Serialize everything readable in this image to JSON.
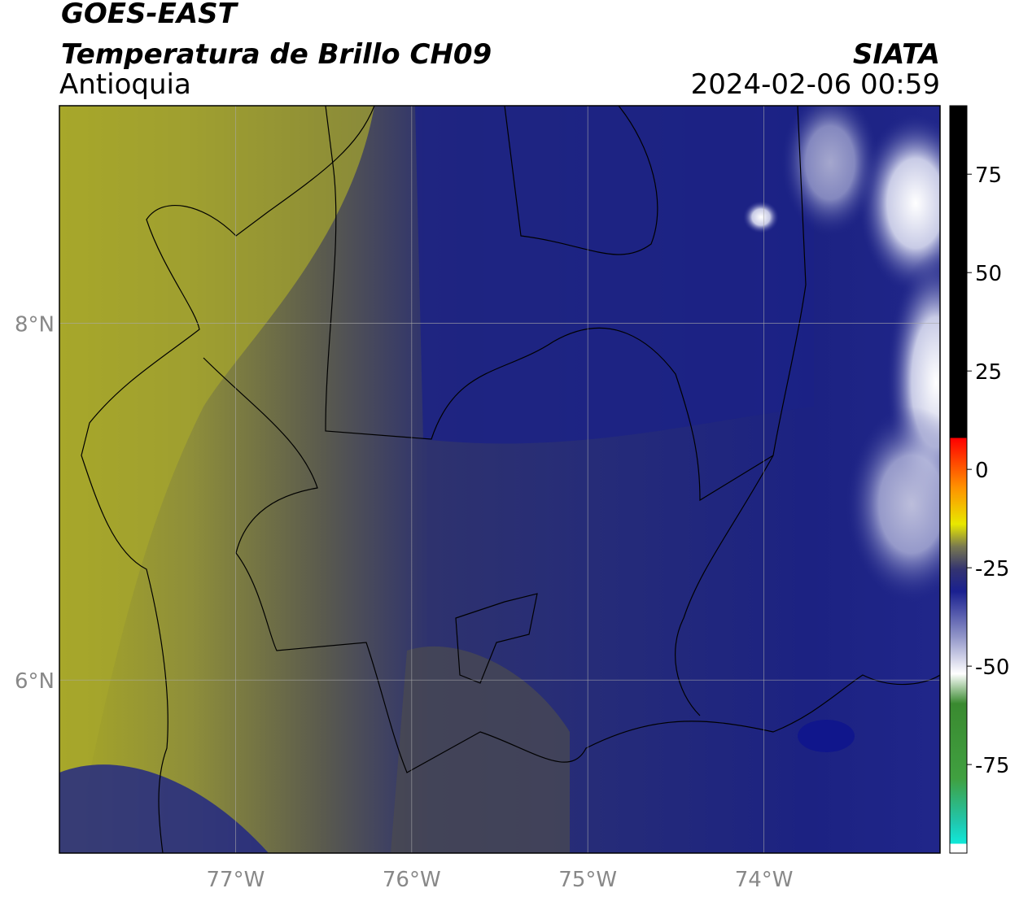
{
  "header": {
    "title": "GOES-EAST",
    "subtitle": "Temperatura de Brillo CH09",
    "region": "Antioquia",
    "source": "SIATA",
    "datetime": "2024-02-06 00:59"
  },
  "map": {
    "lonlim": [
      -78,
      -73
    ],
    "latlim": [
      5.03,
      9.22
    ],
    "xticks": [
      {
        "value": -77,
        "label": "77°W"
      },
      {
        "value": -76,
        "label": "76°W"
      },
      {
        "value": -75,
        "label": "75°W"
      },
      {
        "value": -74,
        "label": "74°W"
      }
    ],
    "yticks": [
      {
        "value": 8,
        "label": "8°N"
      },
      {
        "value": 6,
        "label": "6°N"
      }
    ],
    "grid": true
  },
  "colorbar": {
    "lim": [
      -97.5,
      92.4
    ],
    "ticks": [
      75,
      50,
      25,
      0,
      -25,
      -50,
      -75
    ]
  }
}
